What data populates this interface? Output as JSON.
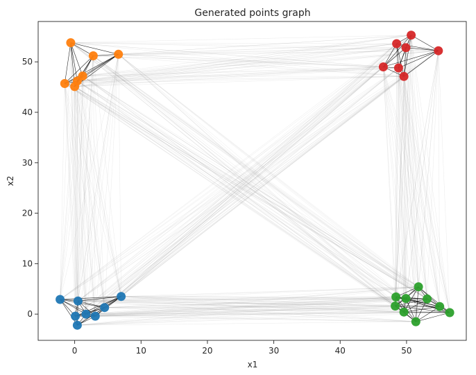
{
  "chart_data": {
    "type": "scatter",
    "title": "Generated points graph",
    "xlabel": "x1",
    "ylabel": "x2",
    "xlim": [
      -5.5,
      59
    ],
    "ylim": [
      -5.2,
      58
    ],
    "xticks": [
      0,
      10,
      20,
      30,
      40,
      50
    ],
    "yticks": [
      0,
      10,
      20,
      30,
      40,
      50
    ],
    "grid": false,
    "legend": "none",
    "edge_color": "#000000",
    "series": [
      {
        "color": "#1f77b4",
        "points": [
          [
            -2.2,
            2.9
          ],
          [
            0.5,
            2.6
          ],
          [
            7.0,
            3.5
          ],
          [
            4.5,
            1.3
          ],
          [
            1.7,
            0.0
          ],
          [
            3.1,
            -0.4
          ],
          [
            0.1,
            -0.4
          ],
          [
            0.4,
            -2.2
          ]
        ]
      },
      {
        "color": "#ff7f0e",
        "points": [
          [
            -0.6,
            53.8
          ],
          [
            2.8,
            51.2
          ],
          [
            6.6,
            51.5
          ],
          [
            1.2,
            47.2
          ],
          [
            0.4,
            46.2
          ],
          [
            -1.5,
            45.7
          ],
          [
            0.0,
            45.1
          ]
        ]
      },
      {
        "color": "#2ca02c",
        "points": [
          [
            51.8,
            5.4
          ],
          [
            48.4,
            3.4
          ],
          [
            49.9,
            3.1
          ],
          [
            53.1,
            3.0
          ],
          [
            55.0,
            1.5
          ],
          [
            56.5,
            0.3
          ],
          [
            48.3,
            1.6
          ],
          [
            49.6,
            0.4
          ],
          [
            51.4,
            -1.5
          ]
        ]
      },
      {
        "color": "#d62728",
        "points": [
          [
            50.7,
            55.3
          ],
          [
            48.5,
            53.6
          ],
          [
            49.9,
            52.8
          ],
          [
            54.8,
            52.2
          ],
          [
            46.5,
            49.0
          ],
          [
            48.8,
            48.8
          ],
          [
            49.6,
            47.1
          ]
        ]
      }
    ]
  }
}
